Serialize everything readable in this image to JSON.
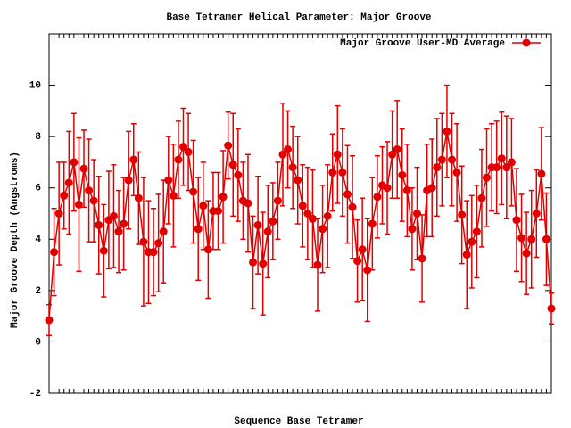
{
  "chart_data": {
    "type": "errorline",
    "title": "Base Tetramer Helical Parameter: Major Groove",
    "x_label": "Sequence Base Tetramer",
    "y_label": "Major Groove Depth (Angstroms)",
    "legend_position": "upper right",
    "ylim": [
      -2,
      12
    ],
    "yticks": [
      -2,
      0,
      2,
      4,
      6,
      8,
      10
    ],
    "categories": [
      null,
      null,
      null,
      null,
      null,
      null,
      null,
      null,
      null,
      null,
      null,
      null,
      null,
      null,
      null,
      null,
      null,
      null,
      null,
      null,
      null,
      null,
      null,
      null,
      null,
      null,
      null,
      null,
      null,
      null,
      null,
      null,
      null,
      null,
      null,
      null,
      null,
      null,
      null,
      null,
      null,
      null,
      null,
      null,
      null,
      null,
      null,
      null,
      null,
      null,
      null,
      null,
      null,
      null,
      null,
      null,
      null,
      null,
      null,
      null,
      null,
      null,
      null,
      null,
      null,
      null,
      null,
      null,
      null,
      null,
      null,
      null,
      null,
      null,
      null,
      null,
      null,
      null,
      null,
      null,
      null,
      null,
      null,
      null,
      null,
      null,
      null,
      null,
      null,
      null,
      null,
      null,
      null,
      null,
      null,
      null,
      null,
      null,
      null,
      null,
      null,
      null
    ],
    "series": [
      {
        "name": "Major Groove User-MD Average",
        "color": "#e00000",
        "values": [
          0.85,
          3.5,
          5.0,
          5.7,
          6.2,
          7.0,
          5.35,
          6.75,
          5.9,
          5.5,
          4.55,
          3.55,
          4.75,
          4.9,
          4.3,
          4.6,
          6.3,
          7.1,
          5.6,
          3.9,
          3.5,
          3.5,
          3.85,
          4.3,
          6.3,
          5.7,
          7.1,
          7.6,
          7.4,
          5.85,
          4.4,
          5.3,
          3.6,
          5.1,
          5.1,
          5.65,
          7.65,
          6.9,
          6.5,
          5.5,
          5.4,
          3.1,
          4.55,
          3.05,
          4.3,
          4.7,
          5.5,
          7.3,
          7.5,
          6.8,
          6.3,
          5.3,
          5.0,
          4.8,
          3.0,
          4.4,
          4.9,
          6.6,
          7.3,
          6.6,
          5.75,
          5.25,
          3.15,
          3.6,
          2.8,
          4.6,
          5.65,
          6.1,
          6.0,
          7.3,
          7.5,
          6.5,
          5.9,
          4.4,
          5.0,
          3.25,
          5.9,
          6.0,
          6.8,
          7.1,
          8.2,
          7.1,
          6.6,
          4.95,
          3.4,
          3.9,
          4.3,
          5.6,
          6.4,
          6.8,
          6.8,
          7.15,
          6.8,
          7.0,
          4.75,
          4.05,
          3.45,
          4.0,
          5.0,
          6.55,
          4.0,
          1.3
        ],
        "errors": [
          0.6,
          1.7,
          2.0,
          1.3,
          2.0,
          1.9,
          2.6,
          1.5,
          2.0,
          1.6,
          1.9,
          1.8,
          1.9,
          2.0,
          1.6,
          1.8,
          1.9,
          1.4,
          1.8,
          2.5,
          2.0,
          1.7,
          1.9,
          2.0,
          1.7,
          2.0,
          1.5,
          1.5,
          1.5,
          2.0,
          2.0,
          1.7,
          1.9,
          1.5,
          1.5,
          1.8,
          1.3,
          2.0,
          1.8,
          1.5,
          1.9,
          1.8,
          1.9,
          2.0,
          1.8,
          1.5,
          1.5,
          2.0,
          1.5,
          1.6,
          1.7,
          1.6,
          1.8,
          1.9,
          1.8,
          1.7,
          2.0,
          1.5,
          1.9,
          1.7,
          1.9,
          2.0,
          1.6,
          2.0,
          2.0,
          1.8,
          1.6,
          1.5,
          1.8,
          1.7,
          1.9,
          1.8,
          1.8,
          1.6,
          1.8,
          1.7,
          1.8,
          1.9,
          1.9,
          1.8,
          1.8,
          1.8,
          1.9,
          1.9,
          2.1,
          1.8,
          1.8,
          1.9,
          1.9,
          1.7,
          1.8,
          1.8,
          2.0,
          1.7,
          2.0,
          1.7,
          1.6,
          1.9,
          1.7,
          1.8,
          1.8,
          0.6
        ]
      }
    ]
  }
}
